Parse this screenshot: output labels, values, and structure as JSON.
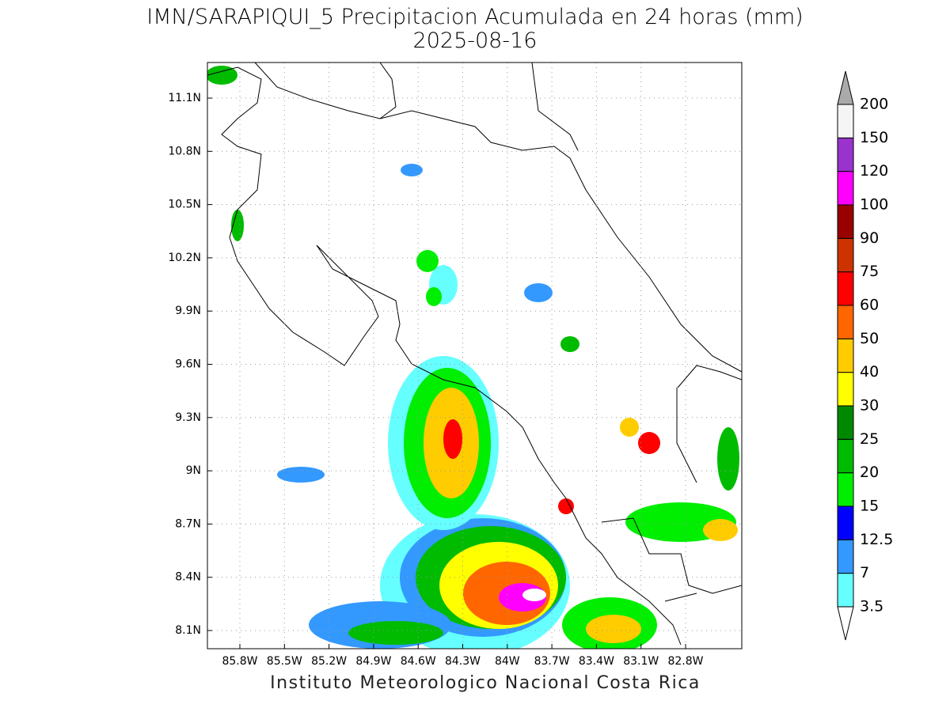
{
  "header": {
    "title": "IMN/SARAPIQUI_5 Precipitacion Acumulada en 24 horas (mm)",
    "date": "2025-08-16"
  },
  "map": {
    "lat_ticks": [
      "11.1N",
      "10.8N",
      "10.5N",
      "10.2N",
      "9.9N",
      "9.6N",
      "9.3N",
      "9N",
      "8.7N",
      "8.4N",
      "8.1N"
    ],
    "lon_ticks": [
      "85.8W",
      "85.5W",
      "85.2W",
      "84.9W",
      "84.6W",
      "84.3W",
      "84W",
      "83.7W",
      "83.4W",
      "83.1W",
      "82.8W"
    ]
  },
  "legend": {
    "labels": [
      "3.5",
      "7",
      "12.5",
      "15",
      "20",
      "25",
      "30",
      "40",
      "50",
      "60",
      "75",
      "90",
      "100",
      "120",
      "150",
      "200"
    ],
    "colors": [
      "#66ffff",
      "#3399ff",
      "#0000ff",
      "#00ee00",
      "#00bb00",
      "#008800",
      "#ffff00",
      "#ffcc00",
      "#ff6600",
      "#ff0000",
      "#cc3300",
      "#990000",
      "#ff00ff",
      "#9933cc",
      "#f5f5f5"
    ],
    "below_color": "#ffffff",
    "above_color": "#aaaaaa"
  },
  "footer": "Instituto Meteorologico Nacional Costa Rica"
}
